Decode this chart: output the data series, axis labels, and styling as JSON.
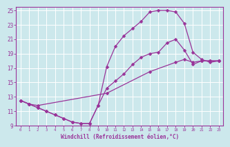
{
  "xlabel": "Windchill (Refroidissement éolien,°C)",
  "bg_color": "#cce8ec",
  "line_color": "#993399",
  "grid_color": "#ffffff",
  "xlim": [
    -0.5,
    23.5
  ],
  "ylim": [
    9,
    25.5
  ],
  "xticks": [
    0,
    1,
    2,
    3,
    4,
    5,
    6,
    7,
    8,
    9,
    10,
    11,
    12,
    13,
    14,
    15,
    16,
    17,
    18,
    19,
    20,
    21,
    22,
    23
  ],
  "yticks": [
    9,
    11,
    13,
    15,
    17,
    19,
    21,
    23,
    25
  ],
  "curve1_x": [
    0,
    1,
    2,
    3,
    4,
    5,
    6,
    7,
    8,
    9,
    10,
    11,
    12,
    13,
    14,
    15,
    16,
    17,
    18,
    19,
    20,
    21,
    22,
    23
  ],
  "curve1_y": [
    12.5,
    12.0,
    11.5,
    11.0,
    10.5,
    10.0,
    9.5,
    9.3,
    9.3,
    11.8,
    17.2,
    20.0,
    21.5,
    22.5,
    23.5,
    24.8,
    25.0,
    25.0,
    24.8,
    23.2,
    19.2,
    18.2,
    17.8,
    18.0
  ],
  "curve2_x": [
    0,
    1,
    2,
    3,
    4,
    5,
    6,
    7,
    8,
    9,
    10,
    11,
    12,
    13,
    14,
    15,
    16,
    17,
    18,
    19,
    20,
    21,
    22,
    23
  ],
  "curve2_y": [
    12.5,
    12.0,
    11.5,
    11.0,
    10.5,
    10.0,
    9.5,
    9.3,
    9.3,
    11.8,
    14.2,
    15.2,
    16.2,
    17.5,
    18.5,
    19.0,
    19.2,
    20.5,
    21.0,
    19.5,
    17.5,
    18.0,
    18.0,
    18.0
  ],
  "curve3_x": [
    0,
    1,
    2,
    10,
    15,
    18,
    19,
    20,
    21,
    22,
    23
  ],
  "curve3_y": [
    12.5,
    12.0,
    11.8,
    13.5,
    16.5,
    17.8,
    18.2,
    17.8,
    18.0,
    18.0,
    18.0
  ]
}
